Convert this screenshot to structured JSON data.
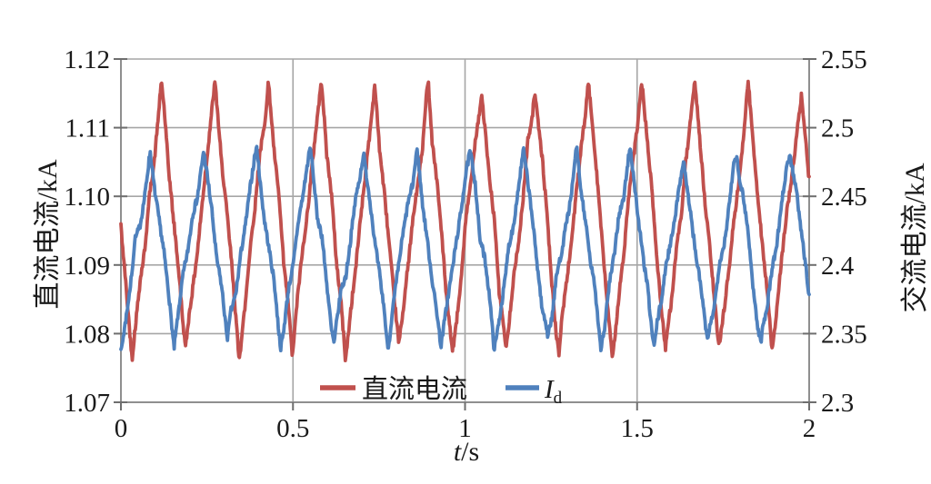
{
  "chart_data": {
    "type": "line",
    "title": "",
    "xlabel": "t/s",
    "xlabel_symbol": "t",
    "xlabel_unit": "/s",
    "x_axis": {
      "range": [
        0,
        2
      ],
      "ticks": [
        "0",
        "0.5",
        "1",
        "1.5",
        "2"
      ]
    },
    "left_axis": {
      "label": "直流电流/kA",
      "range": [
        1.07,
        1.12
      ],
      "tick_step": 0.01,
      "ticks": [
        "1.12",
        "1.11",
        "1.10",
        "1.09",
        "1.08",
        "1.07"
      ]
    },
    "right_axis": {
      "label": "交流电流/kA",
      "range": [
        2.3,
        2.55
      ],
      "tick_step": 0.05,
      "ticks": [
        "2.55",
        "2.5",
        "2.45",
        "2.4",
        "2.35",
        "2.3"
      ]
    },
    "legend": {
      "position": "bottom-inside",
      "items": [
        {
          "label": "直流电流",
          "color": "#c0504d"
        },
        {
          "label": "I_d",
          "label_main": "I",
          "label_sub": "d",
          "color": "#4f81bd"
        }
      ]
    },
    "grid": "on",
    "style": {
      "background": "#ffffff",
      "grid_color": "#a6a6a6",
      "axis_color": "#8f8f8f",
      "tick_color": "#6e6e6e",
      "series_stroke_width": 3.8
    },
    "samples_per_series": 1150,
    "series": [
      {
        "name": "直流电流",
        "axis": "left",
        "color": "#c0504d",
        "approx_range_kA": [
          1.077,
          1.118
        ],
        "approx_peak_times_s": [
          0.118,
          0.273,
          0.428,
          0.583,
          0.738,
          0.893,
          1.048,
          1.203,
          1.358,
          1.513,
          1.668,
          1.823,
          1.978
        ],
        "waveform": {
          "shape": "asymmetric-triangle-with-noise",
          "mean": 1.0965,
          "amplitude": 0.0195,
          "period_s": 0.155,
          "rise_fraction": 0.55,
          "first_peak_s": 0.118,
          "noise_slow": 0.0016,
          "noise_fast": 0.0005,
          "seed": 42
        }
      },
      {
        "name": "Id",
        "axis": "right",
        "color": "#4f81bd",
        "approx_range_kA": [
          2.335,
          2.49
        ],
        "approx_peak_times_s": [
          0.085,
          0.24,
          0.395,
          0.55,
          0.705,
          0.86,
          1.015,
          1.17,
          1.325,
          1.48,
          1.635,
          1.79,
          1.945
        ],
        "waveform": {
          "shape": "asymmetric-triangle-with-noise",
          "mean": 2.413,
          "amplitude": 0.07,
          "period_s": 0.155,
          "rise_fraction": 0.55,
          "first_peak_s": 0.085,
          "noise_slow": 0.0075,
          "noise_fast": 0.0026,
          "seed": 7
        }
      }
    ]
  }
}
